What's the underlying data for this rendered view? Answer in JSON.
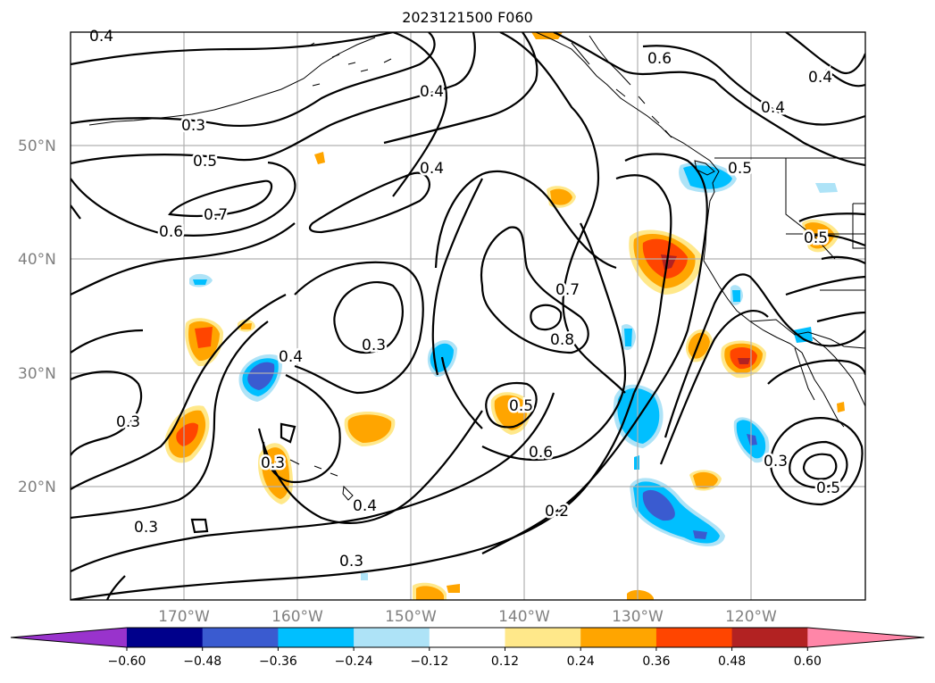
{
  "title": "2023121500 F060",
  "map": {
    "lat_labels": [
      "50°N",
      "40°N",
      "30°N",
      "20°N"
    ],
    "lon_labels": [
      "170°W",
      "160°W",
      "150°W",
      "140°W",
      "130°W",
      "120°W"
    ],
    "contour_labels": [
      "0.4",
      "0.3",
      "0.5",
      "0.7",
      "0.6",
      "0.4",
      "0.4",
      "0.6",
      "0.4",
      "0.4",
      "0.5",
      "0.3",
      "0.4",
      "0.7",
      "0.8",
      "0.5",
      "0.6",
      "0.3",
      "0.3",
      "0.4",
      "0.3",
      "0.3",
      "0.2",
      "0.3",
      "0.5",
      "0.5"
    ],
    "colors": {
      "neg_060": "#9933cc",
      "neg_048": "#00008b",
      "neg_036": "#3a5bd0",
      "neg_024": "#00bfff",
      "neg_012": "#aee3f7",
      "zero": "#ffffff",
      "pos_012": "#ffe88a",
      "pos_024": "#ffa500",
      "pos_036": "#ff4500",
      "pos_048": "#b22222",
      "pos_060": "#ff86a8"
    }
  },
  "colorbar": {
    "ticks": [
      "−0.60",
      "−0.48",
      "−0.36",
      "−0.24",
      "−0.12",
      "0.12",
      "0.24",
      "0.36",
      "0.48",
      "0.60"
    ],
    "colors": [
      "#9933cc",
      "#00008b",
      "#3a5bd0",
      "#00bfff",
      "#aee3f7",
      "#ffffff",
      "#ffe88a",
      "#ffa500",
      "#ff4500",
      "#b22222",
      "#ff86a8"
    ]
  }
}
